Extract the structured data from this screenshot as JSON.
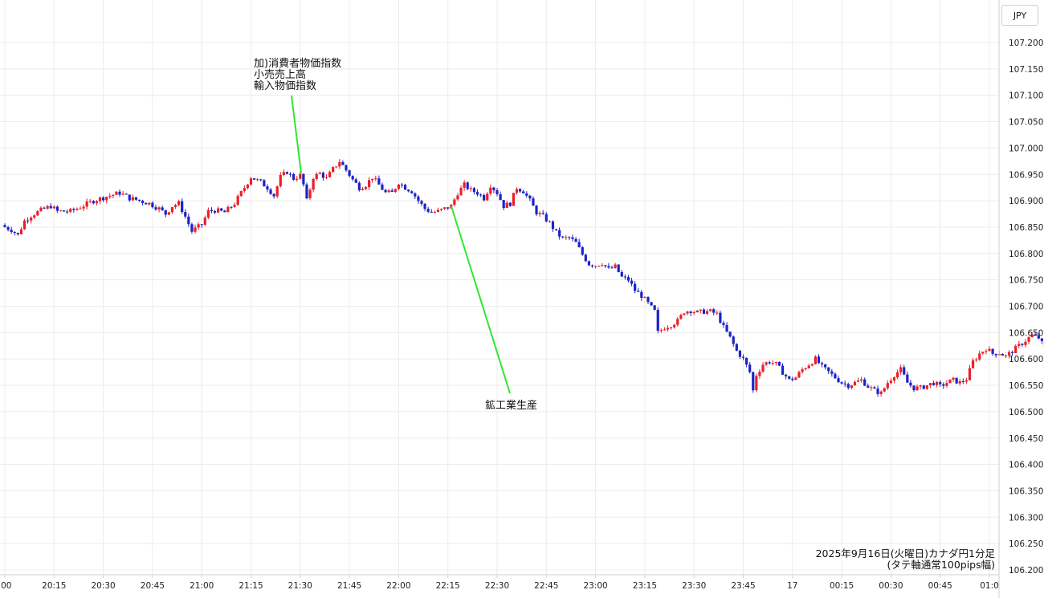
{
  "chart_data": {
    "type": "candlestick",
    "instrument_unit": "JPY",
    "caption": [
      "2025年9月16日(火曜日)カナダ円1分足",
      "(タテ軸通常100pips幅)"
    ],
    "x_ticks": [
      ":00",
      "20:15",
      "20:30",
      "20:45",
      "21:00",
      "21:15",
      "21:30",
      "21:45",
      "22:00",
      "22:15",
      "22:30",
      "22:45",
      "23:00",
      "23:15",
      "23:30",
      "23:45",
      "17",
      "00:15",
      "00:30",
      "00:45",
      "01:0"
    ],
    "y_ticks": [
      "107.200",
      "107.150",
      "107.100",
      "107.050",
      "107.000",
      "106.950",
      "106.900",
      "106.850",
      "106.800",
      "106.750",
      "106.700",
      "106.650",
      "106.600",
      "106.550",
      "106.500",
      "106.450",
      "106.400",
      "106.350",
      "106.300",
      "106.250",
      "106.200"
    ],
    "ylim": [
      106.2,
      107.2
    ],
    "grid": true,
    "up_color": "#e8202a",
    "down_color": "#1d22c7",
    "annotation_color": "#2ee82e",
    "annotations": [
      {
        "lines": [
          "加)消費者物価指数",
          "小売売上高",
          "輸入物価指数"
        ]
      },
      {
        "lines": [
          "鉱工業生産"
        ]
      }
    ],
    "close_series": [
      [
        0,
        106.85
      ],
      [
        2,
        106.845
      ],
      [
        4,
        106.835
      ],
      [
        6,
        106.862
      ],
      [
        8,
        106.872
      ],
      [
        11,
        106.882
      ],
      [
        14,
        106.89
      ],
      [
        16,
        106.88
      ],
      [
        20,
        106.88
      ],
      [
        23,
        106.888
      ],
      [
        27,
        106.9
      ],
      [
        31,
        106.908
      ],
      [
        35,
        106.915
      ],
      [
        38,
        106.905
      ],
      [
        40,
        106.902
      ],
      [
        44,
        106.895
      ],
      [
        47,
        106.885
      ],
      [
        49,
        106.875
      ],
      [
        51,
        106.89
      ],
      [
        53,
        106.895
      ],
      [
        55,
        106.87
      ],
      [
        57,
        106.842
      ],
      [
        60,
        106.855
      ],
      [
        62,
        106.88
      ],
      [
        64,
        106.882
      ],
      [
        67,
        106.878
      ],
      [
        70,
        106.895
      ],
      [
        72,
        106.915
      ],
      [
        75,
        106.945
      ],
      [
        78,
        106.935
      ],
      [
        80,
        106.925
      ],
      [
        82,
        106.91
      ],
      [
        84,
        106.945
      ],
      [
        86,
        106.955
      ],
      [
        88,
        106.942
      ],
      [
        90,
        106.948
      ],
      [
        91,
        106.93
      ],
      [
        92,
        106.9
      ],
      [
        94,
        106.945
      ],
      [
        96,
        106.952
      ],
      [
        98,
        106.942
      ],
      [
        100,
        106.96
      ],
      [
        102,
        106.975
      ],
      [
        104,
        106.958
      ],
      [
        106,
        106.94
      ],
      [
        108,
        106.925
      ],
      [
        110,
        106.93
      ],
      [
        112,
        106.945
      ],
      [
        114,
        106.93
      ],
      [
        116,
        106.915
      ],
      [
        118,
        106.915
      ],
      [
        120,
        106.935
      ],
      [
        122,
        106.925
      ],
      [
        124,
        106.918
      ],
      [
        126,
        106.9
      ],
      [
        128,
        106.885
      ],
      [
        130,
        106.878
      ],
      [
        132,
        106.88
      ],
      [
        134,
        106.885
      ],
      [
        136,
        106.89
      ],
      [
        138,
        106.915
      ],
      [
        140,
        106.93
      ],
      [
        142,
        106.92
      ],
      [
        144,
        106.915
      ],
      [
        146,
        106.905
      ],
      [
        148,
        106.93
      ],
      [
        150,
        106.915
      ],
      [
        152,
        106.89
      ],
      [
        154,
        106.895
      ],
      [
        156,
        106.925
      ],
      [
        158,
        106.918
      ],
      [
        160,
        106.9
      ],
      [
        162,
        106.878
      ],
      [
        164,
        106.87
      ],
      [
        166,
        106.858
      ],
      [
        168,
        106.84
      ],
      [
        170,
        106.828
      ],
      [
        172,
        106.83
      ],
      [
        174,
        106.82
      ],
      [
        176,
        106.798
      ],
      [
        178,
        106.78
      ],
      [
        180,
        106.778
      ],
      [
        182,
        106.782
      ],
      [
        184,
        106.77
      ],
      [
        186,
        106.775
      ],
      [
        188,
        106.755
      ],
      [
        190,
        106.75
      ],
      [
        192,
        106.73
      ],
      [
        194,
        106.72
      ],
      [
        196,
        106.705
      ],
      [
        198,
        106.69
      ],
      [
        199,
        106.65
      ],
      [
        201,
        106.66
      ],
      [
        203,
        106.665
      ],
      [
        205,
        106.672
      ],
      [
        207,
        106.69
      ],
      [
        209,
        106.692
      ],
      [
        211,
        106.688
      ],
      [
        213,
        106.69
      ],
      [
        215,
        106.69
      ],
      [
        217,
        106.685
      ],
      [
        219,
        106.66
      ],
      [
        221,
        106.64
      ],
      [
        223,
        106.615
      ],
      [
        225,
        106.6
      ],
      [
        227,
        106.575
      ],
      [
        228,
        106.54
      ],
      [
        229,
        106.57
      ],
      [
        231,
        106.59
      ],
      [
        233,
        106.595
      ],
      [
        235,
        106.59
      ],
      [
        237,
        106.575
      ],
      [
        239,
        106.56
      ],
      [
        241,
        106.565
      ],
      [
        243,
        106.58
      ],
      [
        245,
        106.59
      ],
      [
        247,
        106.6
      ],
      [
        249,
        106.585
      ],
      [
        251,
        106.575
      ],
      [
        253,
        106.565
      ],
      [
        255,
        106.555
      ],
      [
        257,
        106.55
      ],
      [
        259,
        106.555
      ],
      [
        261,
        106.56
      ],
      [
        263,
        106.548
      ],
      [
        265,
        106.54
      ],
      [
        267,
        106.535
      ],
      [
        269,
        106.555
      ],
      [
        271,
        106.57
      ],
      [
        273,
        106.58
      ],
      [
        275,
        106.555
      ],
      [
        277,
        106.545
      ],
      [
        279,
        106.545
      ],
      [
        281,
        106.55
      ],
      [
        283,
        106.555
      ],
      [
        285,
        106.548
      ],
      [
        287,
        106.555
      ],
      [
        289,
        106.56
      ],
      [
        291,
        106.555
      ],
      [
        293,
        106.562
      ],
      [
        295,
        106.595
      ],
      [
        297,
        106.61
      ],
      [
        299,
        106.62
      ],
      [
        301,
        106.61
      ],
      [
        303,
        106.612
      ],
      [
        305,
        106.605
      ],
      [
        307,
        106.615
      ],
      [
        309,
        106.625
      ],
      [
        311,
        106.635
      ],
      [
        313,
        106.645
      ],
      [
        315,
        106.64
      ],
      [
        317,
        106.62
      ],
      [
        319,
        106.608
      ],
      [
        321,
        106.618
      ],
      [
        323,
        106.595
      ]
    ]
  }
}
